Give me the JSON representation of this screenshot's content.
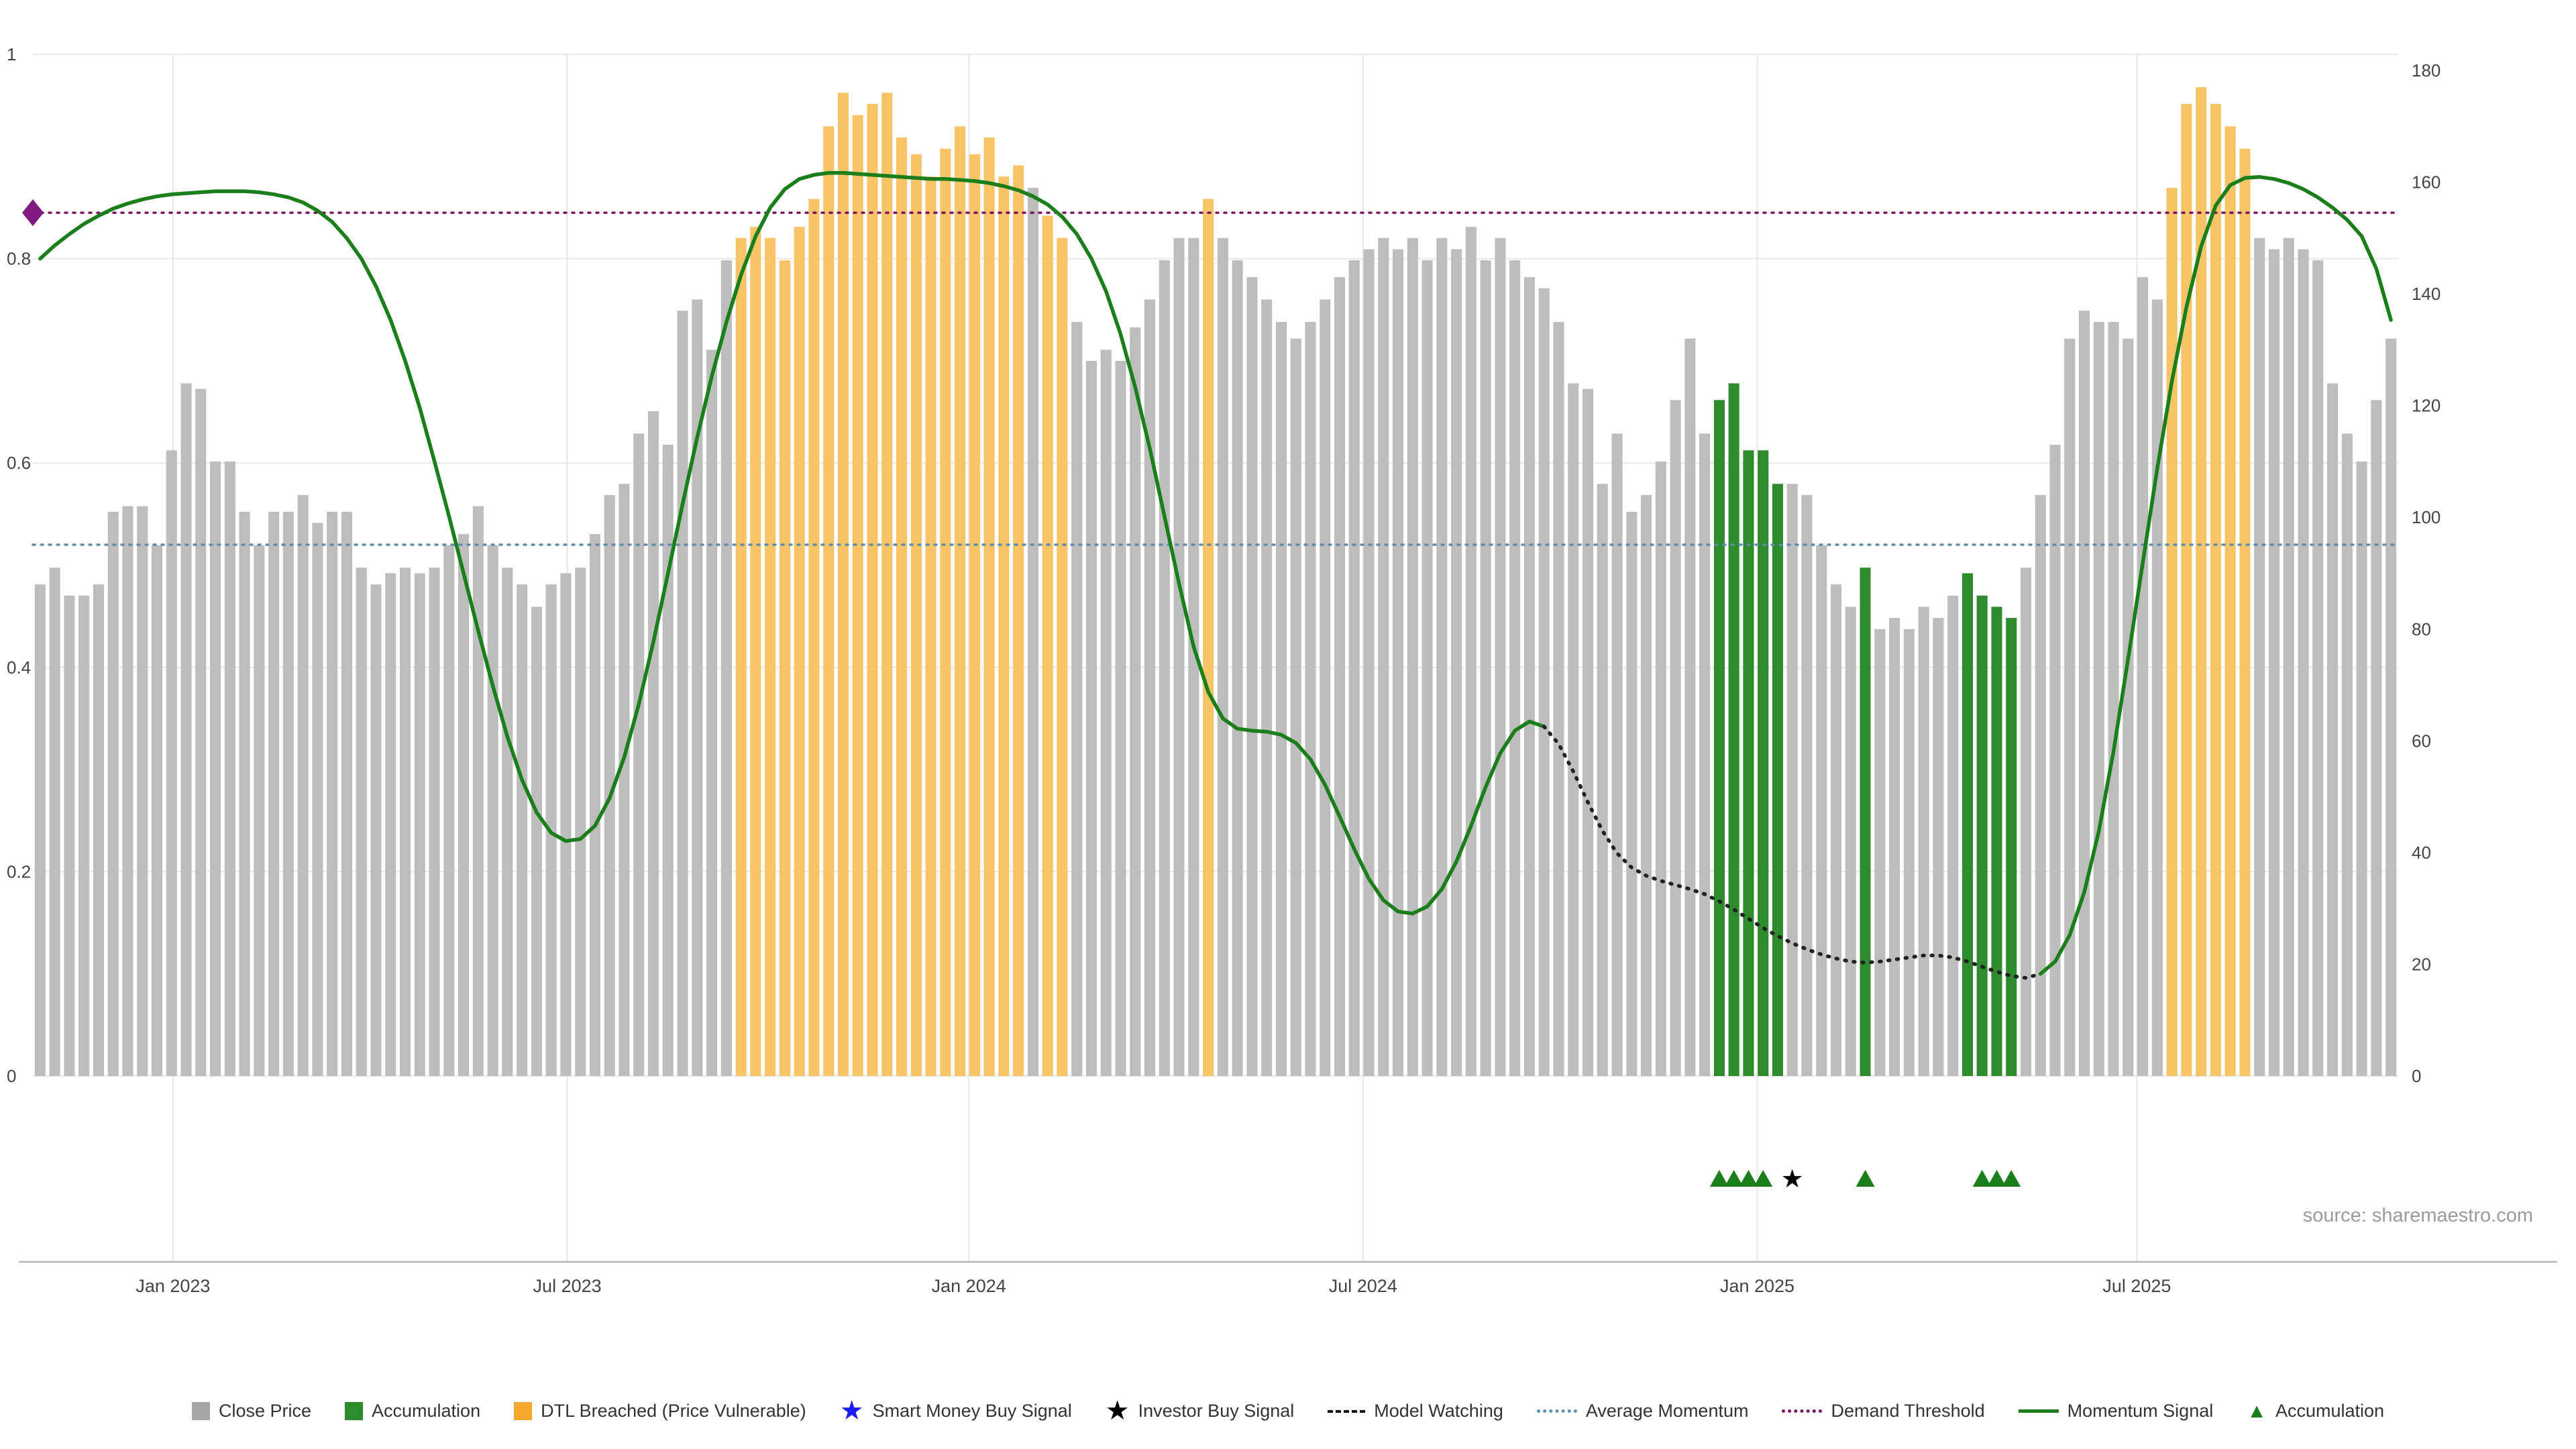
{
  "meta": {
    "source_note": "source: sharemaestro.com"
  },
  "colors": {
    "close_bar": "#bdbdbd",
    "dtl_bar": "#f8c468",
    "accumulation_bar": "#2e8b2e",
    "momentum_line": "#1a7f1a",
    "model_watching": "#222222",
    "demand_threshold": "#7d1060",
    "average_momentum": "#5c8fae",
    "diamond": "#801a80",
    "investor_star": "#000000",
    "smart_money_star": "#1a1aff",
    "accumulation_marker": "#1a7f1a",
    "grid": "#e7e7e7",
    "axis_line": "#b5b5b5",
    "axis_text": "#444444"
  },
  "axes": {
    "left_ticks": [
      {
        "label": "0",
        "value": 0
      },
      {
        "label": "0.2",
        "value": 0.2
      },
      {
        "label": "0.4",
        "value": 0.4
      },
      {
        "label": "0.6",
        "value": 0.6
      },
      {
        "label": "0.8",
        "value": 0.8
      },
      {
        "label": "1",
        "value": 1
      }
    ],
    "right_ticks": [
      {
        "label": "0",
        "value": 0
      },
      {
        "label": "20",
        "value": 20
      },
      {
        "label": "40",
        "value": 40
      },
      {
        "label": "60",
        "value": 60
      },
      {
        "label": "80",
        "value": 80
      },
      {
        "label": "100",
        "value": 100
      },
      {
        "label": "120",
        "value": 120
      },
      {
        "label": "140",
        "value": 140
      },
      {
        "label": "160",
        "value": 160
      },
      {
        "label": "180",
        "value": 180
      }
    ],
    "x_ticks": [
      {
        "label": "Jan 2023",
        "index": 9.1
      },
      {
        "label": "Jul 2023",
        "index": 36.1
      },
      {
        "label": "Jan 2024",
        "index": 63.6
      },
      {
        "label": "Jul 2024",
        "index": 90.6
      },
      {
        "label": "Jan 2025",
        "index": 117.6
      },
      {
        "label": "Jul 2025",
        "index": 143.6
      }
    ]
  },
  "chart_data": {
    "type": "combo_bar_line",
    "left_ylim": [
      0,
      1
    ],
    "right_ylim": [
      0,
      180
    ],
    "bar_series": {
      "name": "Close Price",
      "axis": "right",
      "values": [
        88,
        91,
        86,
        86,
        88,
        101,
        102,
        102,
        95,
        112,
        124,
        123,
        110,
        110,
        101,
        95,
        101,
        101,
        104,
        99,
        101,
        101,
        91,
        88,
        90,
        91,
        90,
        91,
        95,
        97,
        102,
        95,
        91,
        88,
        84,
        88,
        90,
        91,
        97,
        104,
        106,
        115,
        119,
        113,
        137,
        139,
        130,
        146,
        150,
        152,
        150,
        146,
        152,
        157,
        170,
        176,
        172,
        174,
        176,
        168,
        165,
        161,
        166,
        170,
        165,
        168,
        161,
        163,
        159,
        154,
        150,
        135,
        128,
        130,
        128,
        134,
        139,
        146,
        150,
        150,
        157,
        150,
        146,
        143,
        139,
        135,
        132,
        135,
        139,
        143,
        146,
        148,
        150,
        148,
        150,
        146,
        150,
        148,
        152,
        146,
        150,
        146,
        143,
        141,
        135,
        124,
        123,
        106,
        115,
        101,
        104,
        110,
        121,
        132,
        115,
        121,
        124,
        112,
        112,
        106,
        106,
        104,
        95,
        88,
        84,
        91,
        80,
        82,
        80,
        84,
        82,
        86,
        90,
        86,
        84,
        82,
        91,
        104,
        113,
        132,
        137,
        135,
        135,
        132,
        143,
        139,
        159,
        174,
        177,
        174,
        170,
        166,
        150,
        148,
        150,
        148,
        146,
        124,
        115,
        110,
        121,
        132
      ]
    },
    "bar_states": {
      "dtl_breached_ranges": [
        [
          48,
          67
        ],
        [
          69,
          70
        ],
        [
          80,
          80
        ],
        [
          146,
          151
        ]
      ],
      "accumulation_ranges": [
        [
          115,
          119
        ],
        [
          125,
          125
        ],
        [
          132,
          135
        ]
      ]
    },
    "line_series": {
      "name": "Momentum Signal",
      "axis": "left",
      "values": [
        0.8,
        0.813,
        0.824,
        0.834,
        0.842,
        0.849,
        0.854,
        0.858,
        0.861,
        0.863,
        0.864,
        0.865,
        0.866,
        0.866,
        0.866,
        0.865,
        0.863,
        0.86,
        0.855,
        0.847,
        0.836,
        0.82,
        0.8,
        0.773,
        0.74,
        0.7,
        0.654,
        0.602,
        0.548,
        0.492,
        0.436,
        0.382,
        0.332,
        0.29,
        0.258,
        0.238,
        0.23,
        0.232,
        0.245,
        0.272,
        0.312,
        0.364,
        0.425,
        0.492,
        0.56,
        0.625,
        0.685,
        0.738,
        0.784,
        0.822,
        0.85,
        0.868,
        0.878,
        0.882,
        0.884,
        0.884,
        0.883,
        0.882,
        0.881,
        0.88,
        0.879,
        0.878,
        0.878,
        0.877,
        0.876,
        0.874,
        0.871,
        0.867,
        0.861,
        0.853,
        0.841,
        0.824,
        0.8,
        0.768,
        0.726,
        0.674,
        0.614,
        0.548,
        0.482,
        0.42,
        0.376,
        0.35,
        0.34,
        0.338,
        0.337,
        0.334,
        0.326,
        0.31,
        0.285,
        0.254,
        0.222,
        0.193,
        0.172,
        0.161,
        0.159,
        0.166,
        0.183,
        0.21,
        0.245,
        0.283,
        0.316,
        0.338,
        0.347,
        0.342,
        0.325,
        0.298,
        0.268,
        0.24,
        0.218,
        0.204,
        0.196,
        0.191,
        0.187,
        0.183,
        0.178,
        0.171,
        0.163,
        0.154,
        0.145,
        0.137,
        0.13,
        0.124,
        0.119,
        0.115,
        0.112,
        0.111,
        0.112,
        0.114,
        0.116,
        0.118,
        0.118,
        0.116,
        0.112,
        0.107,
        0.102,
        0.098,
        0.096,
        0.1,
        0.112,
        0.138,
        0.18,
        0.24,
        0.318,
        0.408,
        0.502,
        0.595,
        0.68,
        0.753,
        0.812,
        0.852,
        0.872,
        0.879,
        0.88,
        0.878,
        0.874,
        0.868,
        0.86,
        0.85,
        0.838,
        0.822,
        0.79,
        0.74
      ]
    },
    "momentum_segments": [
      {
        "from": 0,
        "to": 103,
        "style": "solid"
      },
      {
        "from": 103,
        "to": 137,
        "style": "dotted"
      },
      {
        "from": 137,
        "to": 161,
        "style": "solid"
      }
    ],
    "reference_lines": [
      {
        "name": "Demand Threshold",
        "axis": "left",
        "value": 0.845,
        "color": "#7d1060",
        "data_name": "demand-threshold-line"
      },
      {
        "name": "Average Momentum",
        "axis": "left",
        "value": 0.52,
        "color": "#5c8fae",
        "data_name": "average-momentum-line"
      }
    ],
    "start_marker": {
      "name": "demand-threshold-origin",
      "shape": "diamond",
      "axis": "left",
      "value": 0.845
    },
    "below_markers": {
      "accumulation_indices": [
        115,
        116,
        117,
        118,
        125,
        133,
        134,
        135
      ],
      "investor_buy_indices": [
        120
      ],
      "smart_money_indices": []
    }
  },
  "legend": {
    "items": [
      {
        "label": "Close Price",
        "shape": "square",
        "color": "#a6a6a6"
      },
      {
        "label": "Accumulation",
        "shape": "square",
        "color": "#2e8b2e"
      },
      {
        "label": "DTL Breached (Price Vulnerable)",
        "shape": "square",
        "color": "#f5a730"
      },
      {
        "label": "Smart Money Buy Signal",
        "shape": "star",
        "glyph": "★",
        "color": "#1a1aff"
      },
      {
        "label": "Investor Buy Signal",
        "shape": "star",
        "glyph": "★",
        "color": "#000000"
      },
      {
        "label": "Model Watching",
        "shape": "dashes",
        "line_style": "dashed",
        "color": "#111111"
      },
      {
        "label": "Average Momentum",
        "shape": "line",
        "line_style": "dotted",
        "color": "#5c8fae"
      },
      {
        "label": "Demand Threshold",
        "shape": "line",
        "line_style": "dotted",
        "color": "#7d1060"
      },
      {
        "label": "Momentum Signal",
        "shape": "line",
        "line_style": "solid",
        "color": "#1a7f1a"
      },
      {
        "label": "Accumulation",
        "shape": "triangle",
        "glyph": "▲",
        "color": "#1a7f1a"
      }
    ]
  }
}
